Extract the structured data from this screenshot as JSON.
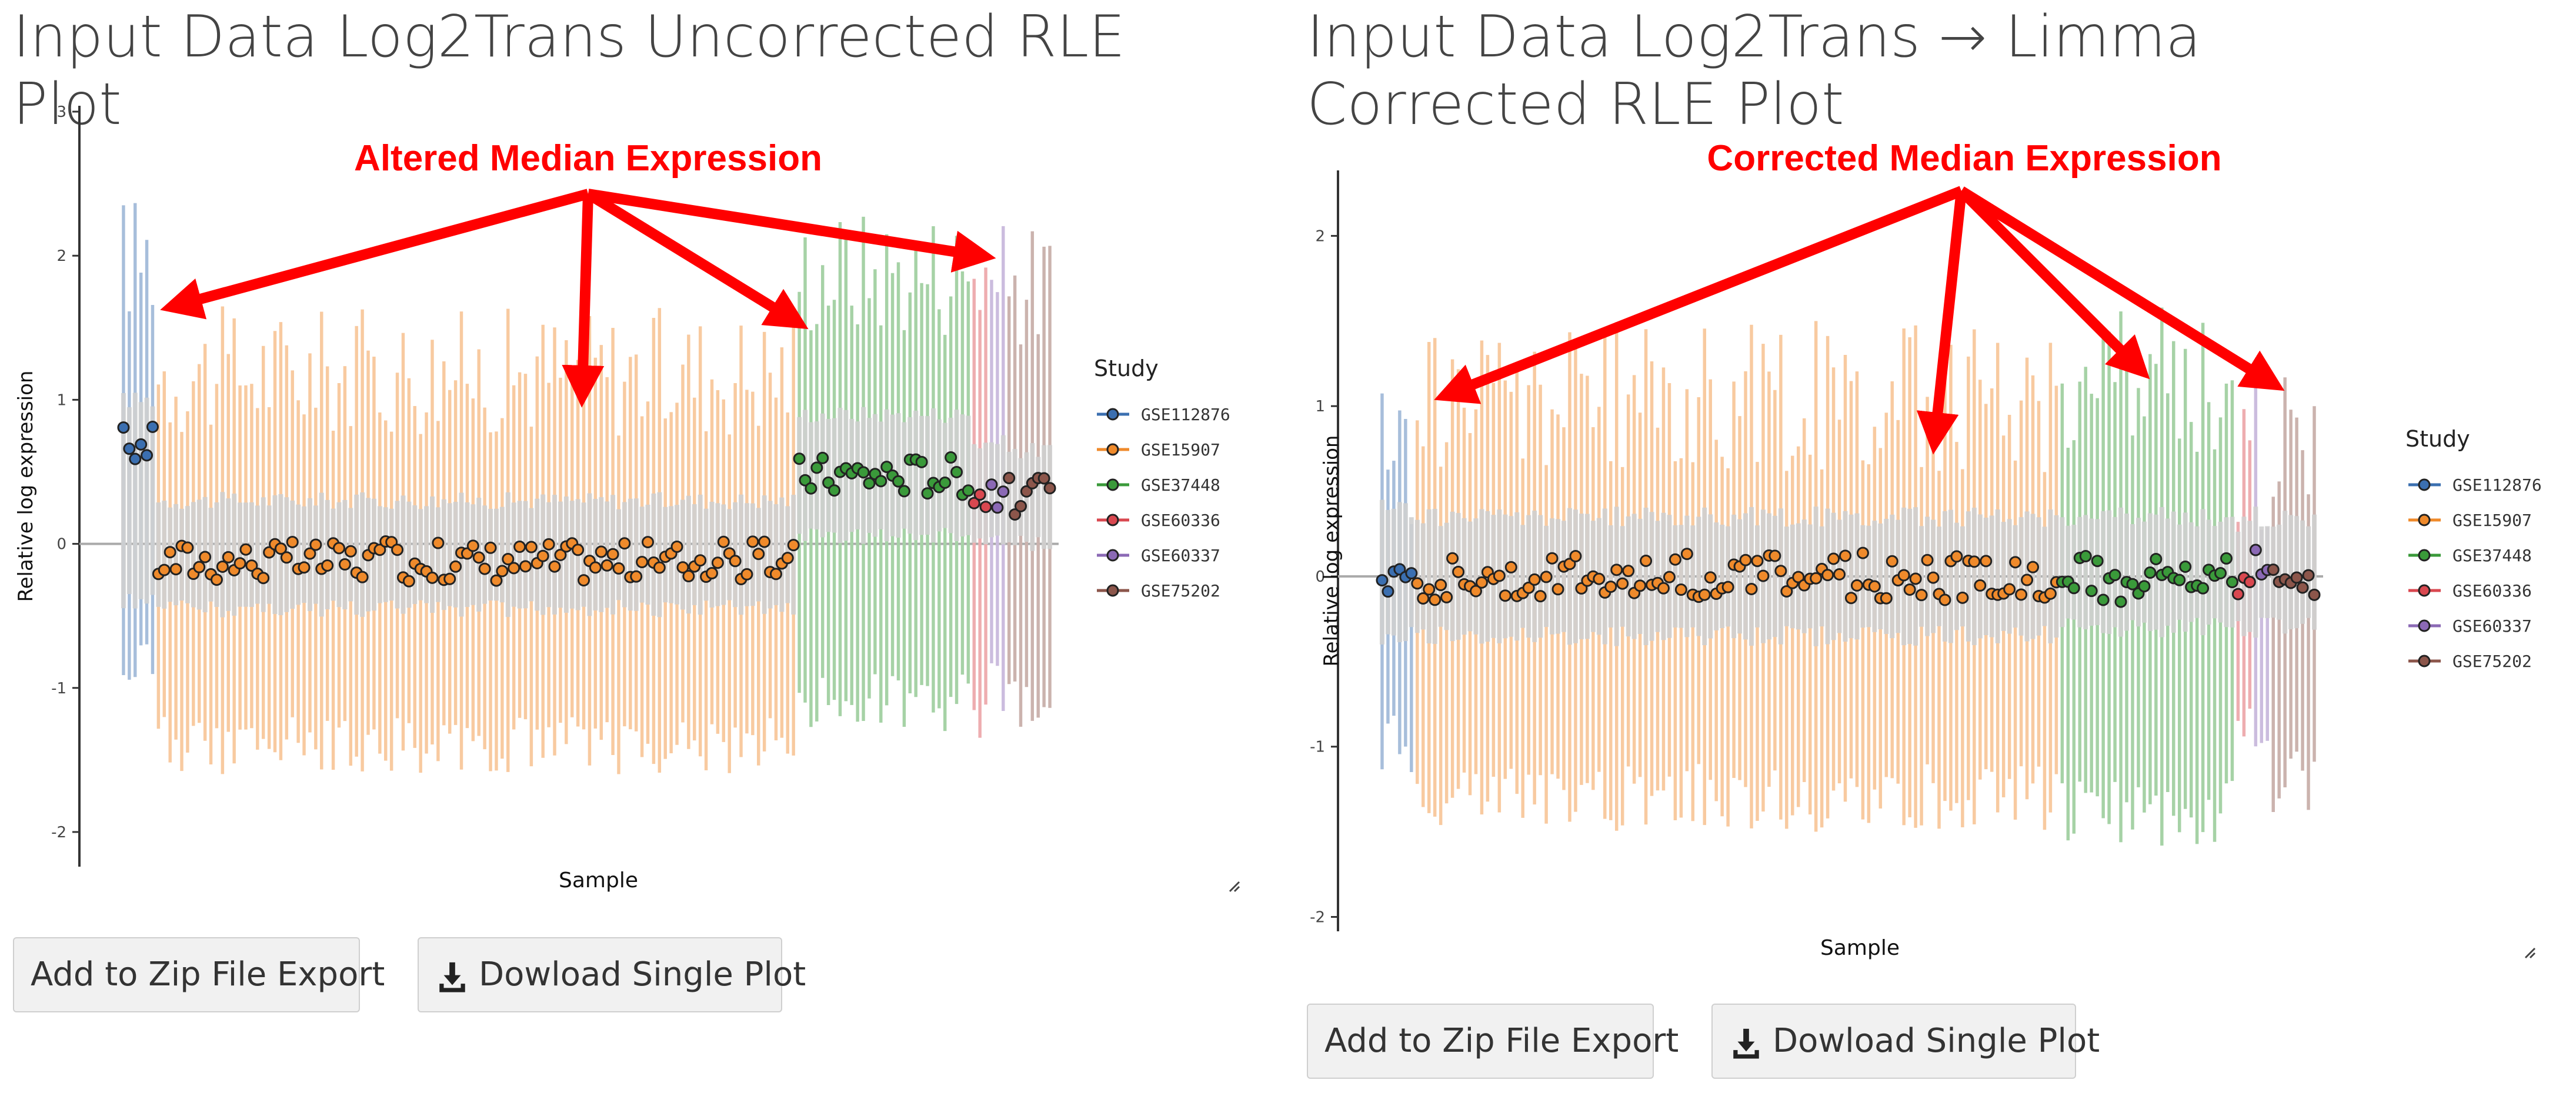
{
  "colors": {
    "GSE112876": "#3b6fb0",
    "GSE15907": "#ef8a2b",
    "GSE37448": "#3a9a3a",
    "GSE60336": "#d94850",
    "GSE60337": "#8b69b5",
    "GSE75202": "#8c564b",
    "annotation": "#ff0000",
    "box": "#c8c8c8"
  },
  "legend_title": "Study",
  "panels": [
    {
      "title": "Input Data Log2Trans Uncorrected RLE Plot",
      "annotation": "Altered Median Expression",
      "buttons": {
        "zip": "Add to Zip File Export",
        "download": "Dowload Single Plot"
      },
      "download_icon": "download-icon"
    },
    {
      "title": "Input Data Log2Trans → Limma Corrected RLE Plot",
      "annotation": "Corrected Median Expression",
      "buttons": {
        "zip": "Add to Zip File Export",
        "download": "Dowload Single Plot"
      },
      "download_icon": "download-icon"
    }
  ],
  "chart_data": [
    {
      "type": "box",
      "title": "Input Data Log2Trans Uncorrected RLE Plot",
      "xlabel": "Sample",
      "ylabel": "Relative log expression",
      "ylim": [
        -2.2,
        3.0
      ],
      "yticks": [
        -2,
        -1,
        0,
        1,
        2,
        3
      ],
      "legend": {
        "title": "Study",
        "position": "right",
        "entries": [
          "GSE112876",
          "GSE15907",
          "GSE37448",
          "GSE60336",
          "GSE60337",
          "GSE75202"
        ]
      },
      "series": [
        {
          "name": "GSE112876",
          "samples": 6,
          "median": 0.69,
          "q1": -0.4,
          "q3": 1.0,
          "wlo": -0.6,
          "whi": 2.0
        },
        {
          "name": "GSE15907",
          "samples": 110,
          "median": -0.12,
          "q1": -0.45,
          "q3": 0.3,
          "wlo": -1.2,
          "whi": 1.2
        },
        {
          "name": "GSE37448",
          "samples": 30,
          "median": 0.48,
          "q1": 0.05,
          "q3": 0.9,
          "wlo": -0.9,
          "whi": 1.9
        },
        {
          "name": "GSE60336",
          "samples": 3,
          "median": 0.35,
          "q1": 0.0,
          "q3": 0.7,
          "wlo": -1.1,
          "whi": 1.9
        },
        {
          "name": "GSE60337",
          "samples": 3,
          "median": 0.38,
          "q1": 0.05,
          "q3": 0.7,
          "wlo": -0.8,
          "whi": 1.8
        },
        {
          "name": "GSE75202",
          "samples": 8,
          "median": 0.33,
          "q1": 0.0,
          "q3": 0.65,
          "wlo": -0.9,
          "whi": 1.8
        }
      ]
    },
    {
      "type": "box",
      "title": "Input Data Log2Trans → Limma Corrected RLE Plot",
      "xlabel": "Sample",
      "ylabel": "Relative log expression",
      "ylim": [
        -2.05,
        2.35
      ],
      "yticks": [
        -2,
        -1,
        0,
        1,
        2
      ],
      "legend": {
        "title": "Study",
        "position": "right",
        "entries": [
          "GSE112876",
          "GSE15907",
          "GSE37448",
          "GSE60336",
          "GSE60337",
          "GSE75202"
        ]
      },
      "series": [
        {
          "name": "GSE112876",
          "samples": 6,
          "median": 0.02,
          "q1": -0.35,
          "q3": 0.4,
          "wlo": -0.8,
          "whi": 0.7
        },
        {
          "name": "GSE15907",
          "samples": 110,
          "median": 0.0,
          "q1": -0.35,
          "q3": 0.35,
          "wlo": -1.1,
          "whi": 1.05
        },
        {
          "name": "GSE37448",
          "samples": 30,
          "median": -0.02,
          "q1": -0.3,
          "q3": 0.35,
          "wlo": -1.2,
          "whi": 1.15
        },
        {
          "name": "GSE60336",
          "samples": 3,
          "median": 0.02,
          "q1": -0.3,
          "q3": 0.3,
          "wlo": -0.6,
          "whi": 0.6
        },
        {
          "name": "GSE60337",
          "samples": 3,
          "median": 0.04,
          "q1": -0.3,
          "q3": 0.35,
          "wlo": -0.6,
          "whi": 0.7
        },
        {
          "name": "GSE75202",
          "samples": 8,
          "median": 0.03,
          "q1": -0.3,
          "q3": 0.35,
          "wlo": -1.0,
          "whi": 0.9
        }
      ]
    }
  ]
}
